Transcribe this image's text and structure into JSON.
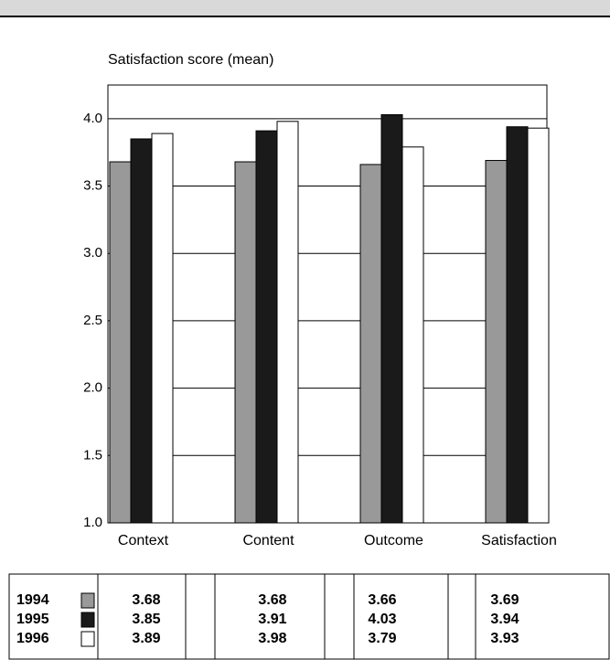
{
  "chart_data": {
    "type": "bar",
    "y_axis_title": "Satisfaction score (mean)",
    "categories": [
      "Context",
      "Content",
      "Outcome",
      "Satisfaction"
    ],
    "series": [
      {
        "name": "1994",
        "color": "#999999",
        "values": [
          3.68,
          3.68,
          3.66,
          3.69
        ]
      },
      {
        "name": "1995",
        "color": "#1a1a1a",
        "values": [
          3.85,
          3.91,
          4.03,
          3.94
        ]
      },
      {
        "name": "1996",
        "color": "#ffffff",
        "values": [
          3.89,
          3.98,
          3.79,
          3.93
        ]
      }
    ],
    "ylim": [
      1.0,
      4.25
    ],
    "yticks": [
      {
        "value": 1,
        "label": "1.0"
      },
      1.5,
      {
        "value": 2,
        "label": "2.0"
      },
      2.5,
      {
        "value": 3,
        "label": "3.0"
      },
      3.5,
      {
        "value": 4,
        "label": "4.0"
      }
    ],
    "grid": true
  }
}
